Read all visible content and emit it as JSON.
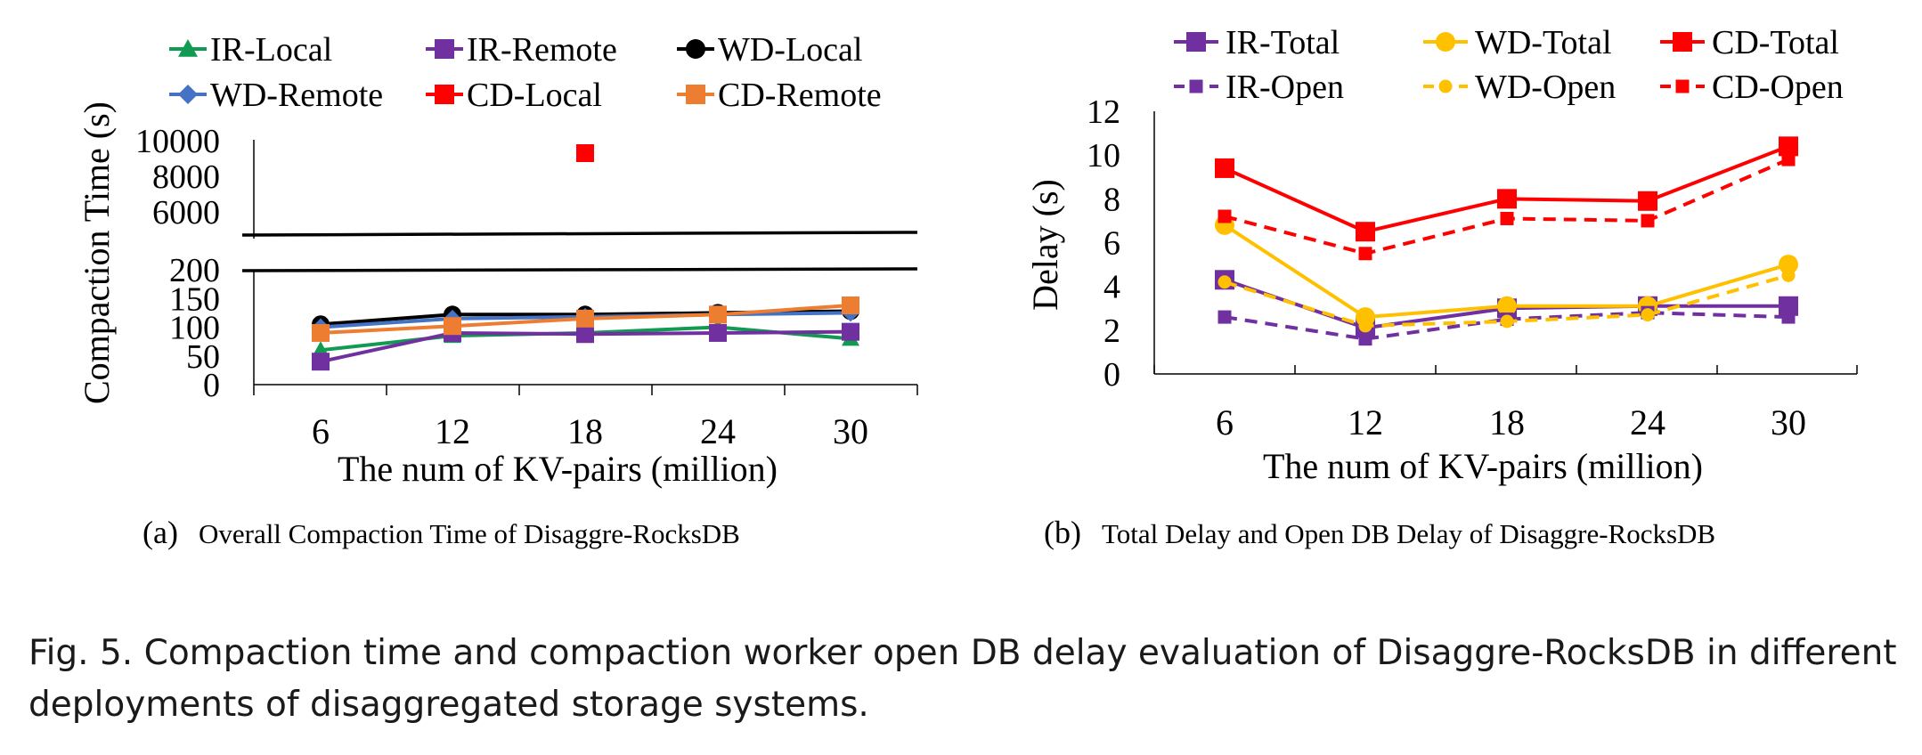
{
  "caption": {
    "text": "Fig. 5.  Compaction time and compaction worker open DB delay evaluation of Disaggre-RocksDB in different deployments of disaggregated storage systems."
  },
  "subcaptions": {
    "a": {
      "label": "(a)",
      "text": "Overall Compaction Time of Disaggre-RocksDB"
    },
    "b": {
      "label": "(b)",
      "text": "Total Delay and Open DB Delay of Disaggre-RocksDB"
    }
  },
  "chart_data": [
    {
      "id": "a",
      "type": "line",
      "xlabel": "The num of KV-pairs (million)",
      "ylabel": "Compaction Time (s)",
      "categories": [
        "6",
        "12",
        "18",
        "24",
        "30"
      ],
      "y_axis_break": true,
      "ylim_lower": [
        0,
        200
      ],
      "yticks_lower": [
        "0",
        "50",
        "100",
        "150",
        "200"
      ],
      "yticks_upper": [
        "6000",
        "8000",
        "10000"
      ],
      "grid": false,
      "legend_position": "top",
      "series": [
        {
          "name": "IR-Local",
          "color": "#119a52",
          "marker": "triangle",
          "values": [
            60,
            85,
            90,
            100,
            80
          ]
        },
        {
          "name": "IR-Remote",
          "color": "#7030a0",
          "marker": "square",
          "values": [
            40,
            90,
            88,
            90,
            92
          ]
        },
        {
          "name": "WD-Local",
          "color": "#000000",
          "marker": "circle",
          "values": [
            105,
            122,
            122,
            125,
            128
          ]
        },
        {
          "name": "WD-Remote",
          "color": "#4472c4",
          "marker": "diamond",
          "values": [
            100,
            115,
            118,
            122,
            125
          ]
        },
        {
          "name": "CD-Local",
          "color": "#ff0000",
          "marker": "square",
          "values": [
            null,
            null,
            9300,
            null,
            null
          ]
        },
        {
          "name": "CD-Remote",
          "color": "#ed7d31",
          "marker": "square",
          "values": [
            90,
            102,
            115,
            122,
            138
          ]
        }
      ]
    },
    {
      "id": "b",
      "type": "line",
      "xlabel": "The num of KV-pairs (million)",
      "ylabel": "Delay (s)",
      "categories": [
        "6",
        "12",
        "18",
        "24",
        "30"
      ],
      "ylim": [
        0,
        12
      ],
      "yticks": [
        "0",
        "2",
        "4",
        "6",
        "8",
        "10",
        "12"
      ],
      "grid": false,
      "legend_position": "top",
      "series": [
        {
          "name": "IR-Total",
          "color": "#7030a0",
          "style": "solid",
          "marker": "square",
          "values": [
            4.3,
            2.1,
            3.0,
            3.1,
            3.1
          ]
        },
        {
          "name": "WD-Total",
          "color": "#ffc000",
          "style": "solid",
          "marker": "circle",
          "values": [
            6.8,
            2.6,
            3.1,
            3.1,
            5.0
          ]
        },
        {
          "name": "CD-Total",
          "color": "#ff0000",
          "style": "solid",
          "marker": "square",
          "values": [
            9.4,
            6.5,
            8.0,
            7.9,
            10.4
          ]
        },
        {
          "name": "IR-Open",
          "color": "#7030a0",
          "style": "dashed",
          "marker": "square",
          "values": [
            2.6,
            1.6,
            2.5,
            2.8,
            2.6
          ]
        },
        {
          "name": "WD-Open",
          "color": "#ffc000",
          "style": "dashed",
          "marker": "circle",
          "values": [
            4.2,
            2.2,
            2.4,
            2.7,
            4.5
          ]
        },
        {
          "name": "CD-Open",
          "color": "#ff0000",
          "style": "dashed",
          "marker": "square",
          "values": [
            7.2,
            5.5,
            7.1,
            7.0,
            9.8
          ]
        }
      ]
    }
  ]
}
